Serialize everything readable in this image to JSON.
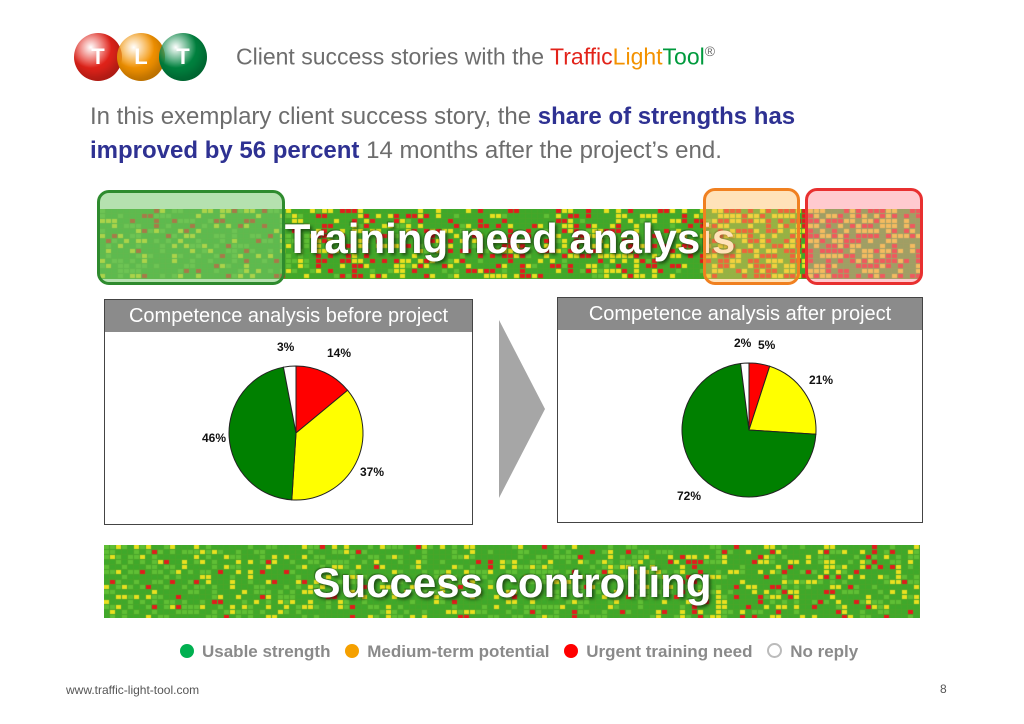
{
  "logo": {
    "letters": [
      "T",
      "L",
      "T"
    ],
    "colors": [
      "#e2231a",
      "#f39200",
      "#00833f"
    ]
  },
  "header": {
    "title_prefix": "Client success stories with the ",
    "brand": {
      "traffic": "Traffic",
      "light": "Light",
      "tool": "Tool",
      "mark": "®"
    },
    "brand_colors": {
      "traffic": "#e2231a",
      "light": "#f39200",
      "tool": "#009a3d"
    }
  },
  "subtitle": {
    "part1": "In this exemplary client success story, the ",
    "highlight": "share of strengths has improved by 56 percent",
    "part2": " 14 months after the project’s end."
  },
  "banner_top": {
    "title": "Training need analysis"
  },
  "banner_bottom": {
    "title": "Success controlling"
  },
  "chart_data": [
    {
      "type": "pie",
      "title": "Competence analysis before project",
      "labels": [
        "Urgent training need",
        "Medium-term potential",
        "Usable strength",
        "No reply"
      ],
      "values": [
        14,
        37,
        46,
        3
      ],
      "data_labels": [
        "14%",
        "37%",
        "46%",
        "3%"
      ],
      "colors": [
        "#ff0000",
        "#ffff00",
        "#008000",
        "#ffffff"
      ]
    },
    {
      "type": "pie",
      "title": "Competence analysis after project",
      "labels": [
        "Urgent training need",
        "Medium-term potential",
        "Usable strength",
        "No reply"
      ],
      "values": [
        5,
        21,
        72,
        2
      ],
      "data_labels": [
        "5%",
        "21%",
        "72%",
        "2%"
      ],
      "colors": [
        "#ff0000",
        "#ffff00",
        "#008000",
        "#ffffff"
      ]
    }
  ],
  "legend": [
    {
      "label": "Usable strength",
      "color": "#00b050"
    },
    {
      "label": "Medium-term potential",
      "color": "#f5a000"
    },
    {
      "label": "Urgent training need",
      "color": "#ff0000"
    },
    {
      "label": "No reply",
      "color": "#ffffff"
    }
  ],
  "footer": {
    "url": "www.traffic-light-tool.com",
    "page": "8"
  }
}
